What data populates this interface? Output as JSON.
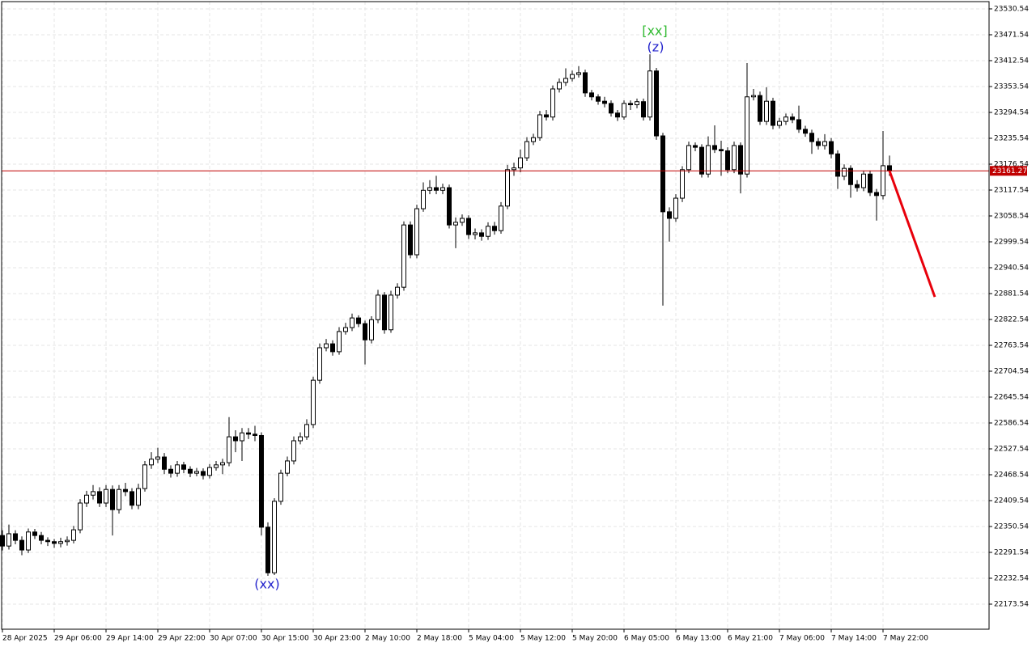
{
  "chart_data": {
    "type": "candlestick",
    "x": [
      "28 Apr 2025",
      null,
      null,
      null,
      null,
      null,
      null,
      null,
      "29 Apr 06:00",
      null,
      null,
      null,
      null,
      null,
      null,
      null,
      "29 Apr 14:00",
      null,
      null,
      null,
      null,
      null,
      null,
      null,
      "29 Apr 22:00",
      null,
      null,
      null,
      null,
      null,
      null,
      null,
      "30 Apr 07:00",
      null,
      null,
      null,
      null,
      null,
      null,
      null,
      "30 Apr 15:00",
      null,
      null,
      null,
      null,
      null,
      null,
      null,
      "30 Apr 23:00",
      null,
      null,
      null,
      null,
      null,
      null,
      null,
      "2 May 10:00",
      null,
      null,
      null,
      null,
      null,
      null,
      null,
      "2 May 18:00",
      null,
      null,
      null,
      null,
      null,
      null,
      null,
      "5 May 04:00",
      null,
      null,
      null,
      null,
      null,
      null,
      null,
      "5 May 12:00",
      null,
      null,
      null,
      null,
      null,
      null,
      null,
      "5 May 20:00",
      null,
      null,
      null,
      null,
      null,
      null,
      null,
      "6 May 05:00",
      null,
      null,
      null,
      null,
      null,
      null,
      null,
      "6 May 13:00",
      null,
      null,
      null,
      null,
      null,
      null,
      null,
      "6 May 21:00",
      null,
      null,
      null,
      null,
      null,
      null,
      null,
      "7 May 06:00",
      null,
      null,
      null,
      null,
      null,
      null,
      null,
      "7 May 14:00",
      null,
      null,
      null,
      null,
      null,
      null,
      null,
      "7 May 22:00",
      null
    ],
    "open": [
      22330,
      22306,
      22334,
      22319,
      22297,
      22338,
      22330,
      22319,
      22316,
      22312,
      22316,
      22319,
      22343,
      22404,
      22422,
      22430,
      22404,
      22435,
      22389,
      22435,
      22430,
      22399,
      22437,
      22491,
      22504,
      22509,
      22481,
      22472,
      22491,
      22481,
      22472,
      22476,
      22467,
      22485,
      22491,
      22496,
      22555,
      22546,
      22564,
      22561,
      22558,
      22349,
      22245,
      22408,
      22472,
      22500,
      22546,
      22555,
      22583,
      22684,
      22758,
      22767,
      22749,
      22795,
      22804,
      22826,
      22813,
      22776,
      22822,
      22878,
      22799,
      22878,
      22896,
      23038,
      22970,
      23075,
      23117,
      23123,
      23117,
      23123,
      23038,
      23044,
      23053,
      23016,
      23020,
      23012,
      23035,
      23025,
      23081,
      23164,
      23168,
      23191,
      23228,
      23237,
      23289,
      23284,
      23348,
      23363,
      23372,
      23381,
      23385,
      23339,
      23330,
      23320,
      23315,
      23293,
      23284,
      23315,
      23312,
      23319,
      23284,
      23389,
      23241,
      23068,
      23053,
      23099,
      23164,
      23219,
      23215,
      23154,
      23219,
      23210,
      23207,
      23164,
      23219,
      23154,
      23330,
      23333,
      23274,
      23320,
      23265,
      23274,
      23284,
      23278,
      23256,
      23247,
      23228,
      23219,
      23228,
      23200,
      23149,
      23167,
      23130,
      23123,
      23154,
      23112,
      23105,
      23173
    ],
    "high": [
      22342,
      22355,
      22342,
      22328,
      22346,
      22345,
      22338,
      22326,
      22322,
      22325,
      22328,
      22352,
      22413,
      22432,
      22445,
      22440,
      22445,
      22444,
      22445,
      22450,
      22438,
      22448,
      22500,
      22520,
      22530,
      22518,
      22490,
      22500,
      22498,
      22488,
      22484,
      22483,
      22493,
      22500,
      22505,
      22600,
      22570,
      22575,
      22575,
      22580,
      22565,
      22360,
      22415,
      22480,
      22510,
      22556,
      22565,
      22595,
      22692,
      22768,
      22778,
      22775,
      22805,
      22815,
      22836,
      22832,
      22820,
      22830,
      22890,
      22885,
      22888,
      22905,
      23046,
      23046,
      23084,
      23135,
      23140,
      23150,
      23132,
      23130,
      23055,
      23062,
      23060,
      23030,
      23028,
      23044,
      23045,
      23090,
      23175,
      23180,
      23210,
      23238,
      23246,
      23298,
      23300,
      23356,
      23372,
      23395,
      23390,
      23400,
      23392,
      23346,
      23336,
      23330,
      23322,
      23300,
      23322,
      23322,
      23326,
      23326,
      23427,
      23396,
      23248,
      23078,
      23108,
      23172,
      23228,
      23226,
      23222,
      23240,
      23265,
      23230,
      23215,
      23228,
      23226,
      23407,
      23348,
      23342,
      23352,
      23328,
      23282,
      23292,
      23292,
      23310,
      23264,
      23255,
      23236,
      23245,
      23236,
      23208,
      23176,
      23174,
      23140,
      23162,
      23162,
      23120,
      23252,
      23196
    ],
    "low": [
      22296,
      22298,
      22310,
      22285,
      22290,
      22322,
      22310,
      22306,
      22302,
      22303,
      22307,
      22312,
      22335,
      22395,
      22412,
      22395,
      22395,
      22330,
      22380,
      22420,
      22390,
      22390,
      22430,
      22482,
      22495,
      22470,
      22462,
      22464,
      22472,
      22463,
      22465,
      22458,
      22460,
      22478,
      22470,
      22488,
      22520,
      22500,
      22550,
      22545,
      22330,
      22238,
      22240,
      22400,
      22465,
      22492,
      22538,
      22548,
      22575,
      22676,
      22750,
      22740,
      22742,
      22788,
      22796,
      22805,
      22720,
      22768,
      22814,
      22790,
      22792,
      22870,
      22888,
      22962,
      22962,
      23068,
      23108,
      23108,
      23108,
      23030,
      22985,
      23036,
      23006,
      23005,
      23002,
      23004,
      23016,
      23018,
      23074,
      23150,
      23158,
      23184,
      23220,
      23230,
      23276,
      23276,
      23340,
      23355,
      23365,
      23374,
      23330,
      23322,
      23312,
      23306,
      23285,
      23275,
      23278,
      23300,
      23304,
      23276,
      23276,
      23232,
      22854,
      23000,
      23045,
      23090,
      23156,
      23206,
      23146,
      23146,
      23202,
      23150,
      23156,
      23156,
      23110,
      23146,
      23322,
      23266,
      23266,
      23256,
      23258,
      23266,
      23270,
      23248,
      23239,
      23200,
      23210,
      23210,
      23190,
      23120,
      23140,
      23100,
      23114,
      23115,
      23104,
      23048,
      23096,
      23150
    ],
    "close": [
      22306,
      22334,
      22319,
      22297,
      22338,
      22330,
      22319,
      22316,
      22312,
      22316,
      22319,
      22343,
      22404,
      22422,
      22430,
      22404,
      22435,
      22389,
      22435,
      22430,
      22399,
      22437,
      22491,
      22504,
      22509,
      22481,
      22472,
      22491,
      22481,
      22472,
      22476,
      22467,
      22485,
      22491,
      22496,
      22555,
      22546,
      22564,
      22561,
      22558,
      22349,
      22245,
      22408,
      22472,
      22500,
      22546,
      22555,
      22583,
      22684,
      22758,
      22767,
      22749,
      22795,
      22804,
      22826,
      22813,
      22776,
      22822,
      22878,
      22799,
      22878,
      22896,
      23038,
      22970,
      23075,
      23117,
      23123,
      23117,
      23123,
      23038,
      23044,
      23053,
      23016,
      23020,
      23012,
      23035,
      23025,
      23081,
      23164,
      23168,
      23191,
      23228,
      23237,
      23289,
      23284,
      23348,
      23363,
      23372,
      23381,
      23385,
      23339,
      23330,
      23320,
      23315,
      23293,
      23284,
      23315,
      23312,
      23319,
      23284,
      23389,
      23241,
      23068,
      23053,
      23099,
      23164,
      23219,
      23215,
      23154,
      23219,
      23210,
      23207,
      23164,
      23219,
      23154,
      23330,
      23333,
      23274,
      23320,
      23265,
      23274,
      23284,
      23278,
      23256,
      23247,
      23228,
      23219,
      23228,
      23200,
      23149,
      23167,
      23130,
      23123,
      23154,
      23112,
      23105,
      23173,
      23161.27
    ],
    "up_color": "#ffffff",
    "down_color": "#000000",
    "price_line_color": "#c00000",
    "forecast": {
      "values": [
        23161.27,
        22874
      ],
      "color": "#e8000b"
    },
    "annotations": [
      {
        "text": "[xx]",
        "color": "#33bb33"
      },
      {
        "text": "(z)",
        "color": "#2222cc"
      },
      {
        "text": "(xx)",
        "color": "#2222cc"
      }
    ],
    "ylim": [
      22116.4,
      23547.1
    ],
    "yticks": [
      23530.54,
      23471.54,
      23412.54,
      23353.54,
      23294.54,
      23235.54,
      23176.54,
      23117.54,
      23058.54,
      22999.54,
      22940.54,
      22881.54,
      22822.54,
      22763.54,
      22704.54,
      22645.54,
      22586.54,
      22527.54,
      22468.54,
      22409.54,
      22350.54,
      22291.54,
      22232.54,
      22173.54
    ],
    "grid": true
  }
}
